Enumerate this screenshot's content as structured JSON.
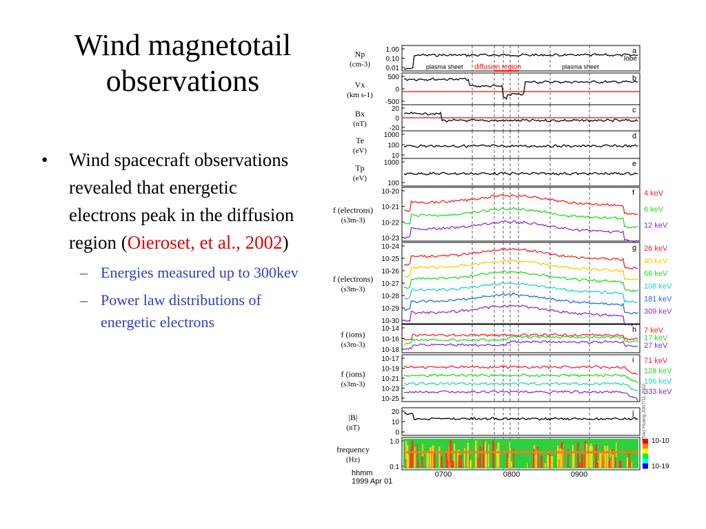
{
  "slide": {
    "title_line1": "Wind magnetotail",
    "title_line2": "observations",
    "bullet_text": "Wind spacecraft observations revealed that energetic electrons peak in the diffusion region (",
    "bullet_cite": "Oieroset, et al., 2002",
    "bullet_close": ")",
    "sub_bullets": [
      "Energies measured up to 300kev",
      "Power law distributions of energetic electrons"
    ]
  },
  "chart_data": {
    "type": "line",
    "x_axis": {
      "label_top": "hhmm",
      "label_bottom": "1999 Apr 01",
      "ticks": [
        "0700",
        "0800",
        "0900"
      ]
    },
    "region_labels": [
      "plasma sheet",
      "diffusion region",
      "plasma sheet"
    ],
    "side_stamp": "Zhao Huang 2007/11 2002",
    "panels": [
      {
        "id": "a",
        "ylabel": "Np",
        "yunit": "(cm-3)",
        "ticks": [
          "1.00",
          "0.10",
          "0.01"
        ],
        "note": "lobe"
      },
      {
        "id": "b",
        "ylabel": "Vx",
        "yunit": "(km s-1)",
        "ticks": [
          "500",
          "0",
          "-500"
        ]
      },
      {
        "id": "c",
        "ylabel": "Bx",
        "yunit": "(nT)",
        "ticks": [
          "20",
          "0",
          "-20"
        ]
      },
      {
        "id": "d",
        "ylabel": "Te",
        "yunit": "(eV)",
        "ticks": [
          "1000",
          "100",
          "10"
        ]
      },
      {
        "id": "e",
        "ylabel": "Tp",
        "yunit": "(eV)",
        "ticks": [
          "1000",
          "100"
        ]
      },
      {
        "id": "f",
        "ylabel": "f (electrons)",
        "yunit": "(s3m-3)",
        "ticks": [
          "10-20",
          "10-21",
          "10-22",
          "10-23"
        ],
        "series": [
          {
            "name": "4 keV",
            "color": "#ff2020"
          },
          {
            "name": "6 keV",
            "color": "#22dd22"
          },
          {
            "name": "12 keV",
            "color": "#8a2be2"
          }
        ]
      },
      {
        "id": "g",
        "ylabel": "f (electrons)",
        "yunit": "(s3m-3)",
        "ticks": [
          "10-24",
          "10-25",
          "10-26",
          "10-27",
          "10-28",
          "10-29",
          "10-30"
        ],
        "series": [
          {
            "name": "26 keV",
            "color": "#ff2020"
          },
          {
            "name": "40 keV",
            "color": "#f5d000"
          },
          {
            "name": "66 keV",
            "color": "#22dd22"
          },
          {
            "name": "108 keV",
            "color": "#1fd6c8"
          },
          {
            "name": "181 keV",
            "color": "#1f6fe0"
          },
          {
            "name": "309 keV",
            "color": "#8a2be2"
          }
        ]
      },
      {
        "id": "h",
        "ylabel": "f (ions)",
        "yunit": "(s3m-3)",
        "ticks": [
          "10-14",
          "10-16",
          "10-18"
        ],
        "series": [
          {
            "name": "7 keV",
            "color": "#ff2020"
          },
          {
            "name": "17 keV",
            "color": "#22dd22"
          },
          {
            "name": "27 keV",
            "color": "#8a2be2"
          }
        ]
      },
      {
        "id": "i",
        "ylabel": "f (ions)",
        "yunit": "(s3m-3)",
        "ticks": [
          "10-17",
          "10-19",
          "10-21",
          "10-23",
          "10-25"
        ],
        "series": [
          {
            "name": "71 keV",
            "color": "#ff2020"
          },
          {
            "name": "128 keV",
            "color": "#22dd22"
          },
          {
            "name": "196 keV",
            "color": "#1fd6c8"
          },
          {
            "name": "333 keV",
            "color": "#8a2be2"
          }
        ]
      },
      {
        "id": "j",
        "ylabel": "|B|",
        "yunit": "(nT)",
        "ticks": [
          "20",
          "10",
          "0"
        ]
      },
      {
        "id": "k",
        "ylabel": "frequency",
        "yunit": "(Hz)",
        "ticks": [
          "1.0",
          "0.1"
        ],
        "colorbar": [
          "10-10",
          "10-19"
        ]
      }
    ]
  }
}
